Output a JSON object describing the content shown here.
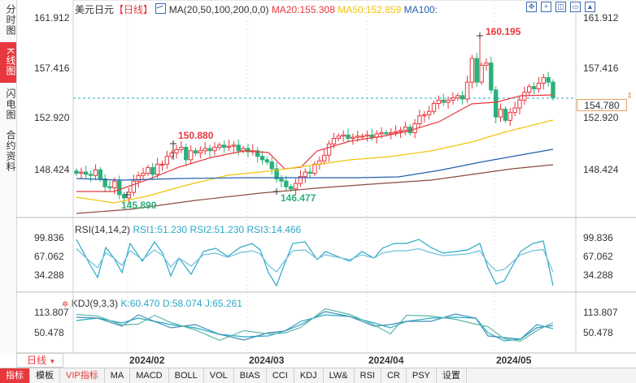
{
  "side_tabs": [
    {
      "label": "分时图",
      "active": false
    },
    {
      "label": "K线图",
      "active": true
    },
    {
      "label": "闪电图",
      "active": false
    },
    {
      "label": "合约资料",
      "active": false
    }
  ],
  "main_header": {
    "symbol": "美元日元",
    "period": "【日线】",
    "ma_label": "MA(20,50,100,200,0,0)",
    "ma20": "MA20:155.308",
    "ma50": "MA50:152.859",
    "ma100": "MA100:"
  },
  "rsi_header": {
    "label": "RSI(14,14,2)",
    "rsi1": "RSI1:51.230",
    "rsi2": "RSI2:51.230",
    "rsi3": "RSI3:14.466"
  },
  "kdj_header": {
    "label": "KDJ(9,3,3)",
    "k": "K:60.470",
    "d": "D:58.074",
    "j": "J:65.261"
  },
  "price_axis": {
    "left": [
      "161.912",
      "157.416",
      "152.920",
      "148.424"
    ],
    "right": [
      "161.912",
      "157.416",
      "152.920",
      "148.424"
    ]
  },
  "rsi_axis": {
    "left": [
      "99.836",
      "67.062",
      "34.288"
    ],
    "right": [
      "99.836",
      "67.062",
      "34.288"
    ]
  },
  "kdj_axis": {
    "left": [
      "113.807",
      "50.478"
    ],
    "right": [
      "113.807",
      "50.478"
    ]
  },
  "current_price": "154.780",
  "annotations": {
    "high1": "150.880",
    "high2": "160.195",
    "low1": "145.890",
    "low2": "146.477"
  },
  "date_labels": [
    "2024/02",
    "2024/03",
    "2024/04",
    "2024/05"
  ],
  "period_button": "日线",
  "bottom_tabs": [
    "指标",
    "模板",
    "VIP指标",
    "MA",
    "MACD",
    "BOLL",
    "VOL",
    "BIAS",
    "CCI",
    "KDJ",
    "LW&",
    "RSI",
    "CR",
    "PSY",
    "设置"
  ],
  "colors": {
    "up": "#e8373d",
    "down": "#2bb07a",
    "ma20": "#e8373d",
    "ma50": "#f2c20a",
    "ma100": "#1f5fae",
    "ma200": "#8b4a3b",
    "rsi": "#2aa9c9",
    "kdj": "#2aa9c9",
    "accent": "#e8373d"
  }
}
